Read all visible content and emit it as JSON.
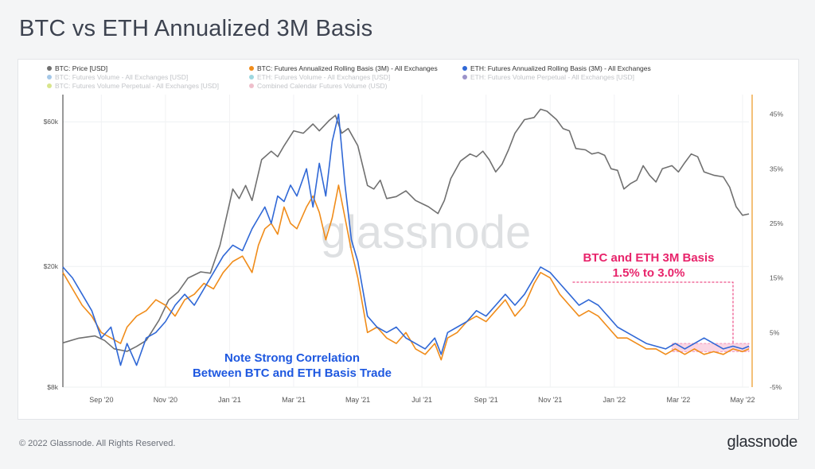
{
  "page": {
    "title": "BTC vs ETH Annualized 3M Basis",
    "copyright": "© 2022 Glassnode. All Rights Reserved.",
    "logo": "glassnode",
    "watermark": "glassnode"
  },
  "colors": {
    "btc_price": "#707070",
    "btc_basis": "#f08c1a",
    "eth_basis": "#3068d6",
    "annotation_pink": "#e8246b",
    "annotation_blue": "#1e58e0",
    "right_axis": "#f0a640"
  },
  "legend": [
    {
      "label": "BTC: Price [USD]",
      "color": "#707070",
      "faded": false
    },
    {
      "label": "BTC: Futures Annualized Rolling Basis (3M) - All Exchanges",
      "color": "#f08c1a",
      "faded": false
    },
    {
      "label": "ETH: Futures Annualized Rolling Basis (3M) - All Exchanges",
      "color": "#3068d6",
      "faded": false
    },
    {
      "label": "BTC: Futures Volume - All Exchanges [USD]",
      "color": "#5b9bd5",
      "faded": true
    },
    {
      "label": "ETH: Futures Volume - All Exchanges [USD]",
      "color": "#4fb6c4",
      "faded": true
    },
    {
      "label": "ETH: Futures Volume Perpetual - All Exchanges [USD]",
      "color": "#4b3a9c",
      "faded": true
    },
    {
      "label": "BTC: Futures Volume Perpetual - All Exchanges [USD]",
      "color": "#b8cf2e",
      "faded": true
    },
    {
      "label": "Combined Calendar Futures Volume (USD)",
      "color": "#e08aa0",
      "faded": true
    }
  ],
  "chart_data": {
    "type": "line",
    "title": "BTC vs ETH Annualized 3M Basis",
    "x_start": 0,
    "x_end": 21.4,
    "x_unit": "months since 2020-08-01",
    "x_ticks": [
      {
        "v": 1.2,
        "label": "Sep '20"
      },
      {
        "v": 3.2,
        "label": "Nov '20"
      },
      {
        "v": 5.2,
        "label": "Jan '21"
      },
      {
        "v": 7.2,
        "label": "Mar '21"
      },
      {
        "v": 9.2,
        "label": "May '21"
      },
      {
        "v": 11.2,
        "label": "Jul '21"
      },
      {
        "v": 13.2,
        "label": "Sep '21"
      },
      {
        "v": 15.2,
        "label": "Nov '21"
      },
      {
        "v": 17.2,
        "label": "Jan '22"
      },
      {
        "v": 19.2,
        "label": "Mar '22"
      },
      {
        "v": 21.2,
        "label": "May '22"
      }
    ],
    "left_axis": {
      "scale": "log",
      "min": 8000,
      "max": 72000,
      "ticks": [
        {
          "v": 8000,
          "label": "$8k"
        },
        {
          "v": 20000,
          "label": "$20k"
        },
        {
          "v": 60000,
          "label": "$60k"
        }
      ]
    },
    "right_axis": {
      "min": -5,
      "max": 48,
      "ticks": [
        {
          "v": -5,
          "label": "-5%"
        },
        {
          "v": 5,
          "label": "5%"
        },
        {
          "v": 15,
          "label": "15%"
        },
        {
          "v": 25,
          "label": "25%"
        },
        {
          "v": 35,
          "label": "35%"
        },
        {
          "v": 45,
          "label": "45%"
        }
      ]
    },
    "series": [
      {
        "name": "BTC: Price [USD]",
        "axis": "left",
        "color": "#707070",
        "points": [
          [
            0,
            11200
          ],
          [
            0.5,
            11600
          ],
          [
            1.0,
            11800
          ],
          [
            1.3,
            11400
          ],
          [
            1.6,
            10700
          ],
          [
            2.0,
            10500
          ],
          [
            2.3,
            10900
          ],
          [
            2.6,
            11400
          ],
          [
            3.0,
            13300
          ],
          [
            3.3,
            15500
          ],
          [
            3.6,
            16500
          ],
          [
            3.9,
            18300
          ],
          [
            4.3,
            19200
          ],
          [
            4.6,
            19000
          ],
          [
            4.9,
            23500
          ],
          [
            5.1,
            29000
          ],
          [
            5.3,
            36000
          ],
          [
            5.5,
            33500
          ],
          [
            5.7,
            37000
          ],
          [
            5.9,
            33000
          ],
          [
            6.2,
            45000
          ],
          [
            6.5,
            48000
          ],
          [
            6.7,
            46000
          ],
          [
            6.9,
            50000
          ],
          [
            7.2,
            56000
          ],
          [
            7.5,
            55000
          ],
          [
            7.8,
            59000
          ],
          [
            8.0,
            56000
          ],
          [
            8.3,
            60500
          ],
          [
            8.5,
            63000
          ],
          [
            8.7,
            55000
          ],
          [
            8.9,
            57000
          ],
          [
            9.2,
            50000
          ],
          [
            9.5,
            37000
          ],
          [
            9.7,
            36000
          ],
          [
            9.9,
            38500
          ],
          [
            10.1,
            33500
          ],
          [
            10.4,
            34000
          ],
          [
            10.7,
            35500
          ],
          [
            11.0,
            33000
          ],
          [
            11.4,
            31500
          ],
          [
            11.7,
            29900
          ],
          [
            11.9,
            33000
          ],
          [
            12.1,
            39000
          ],
          [
            12.4,
            44500
          ],
          [
            12.7,
            47000
          ],
          [
            12.9,
            46000
          ],
          [
            13.1,
            48000
          ],
          [
            13.3,
            45000
          ],
          [
            13.5,
            41000
          ],
          [
            13.7,
            43500
          ],
          [
            13.9,
            48500
          ],
          [
            14.1,
            55000
          ],
          [
            14.4,
            61000
          ],
          [
            14.7,
            62000
          ],
          [
            14.9,
            66000
          ],
          [
            15.1,
            65000
          ],
          [
            15.4,
            61000
          ],
          [
            15.6,
            57000
          ],
          [
            15.8,
            56000
          ],
          [
            16.0,
            49000
          ],
          [
            16.3,
            48500
          ],
          [
            16.5,
            47000
          ],
          [
            16.7,
            47500
          ],
          [
            16.9,
            46500
          ],
          [
            17.1,
            42000
          ],
          [
            17.3,
            41500
          ],
          [
            17.5,
            36000
          ],
          [
            17.7,
            37500
          ],
          [
            17.9,
            38500
          ],
          [
            18.1,
            43000
          ],
          [
            18.3,
            40000
          ],
          [
            18.5,
            38000
          ],
          [
            18.7,
            42000
          ],
          [
            19.0,
            43000
          ],
          [
            19.2,
            41000
          ],
          [
            19.4,
            44000
          ],
          [
            19.6,
            47000
          ],
          [
            19.8,
            46000
          ],
          [
            20.0,
            41000
          ],
          [
            20.3,
            40000
          ],
          [
            20.6,
            39500
          ],
          [
            20.8,
            36500
          ],
          [
            21.0,
            31500
          ],
          [
            21.2,
            29500
          ],
          [
            21.4,
            29800
          ]
        ]
      },
      {
        "name": "BTC: Futures Annualized Rolling Basis (3M) - All Exchanges",
        "axis": "right",
        "color": "#f08c1a",
        "points": [
          [
            0,
            16
          ],
          [
            0.3,
            13
          ],
          [
            0.6,
            10
          ],
          [
            0.9,
            8
          ],
          [
            1.2,
            5
          ],
          [
            1.5,
            4
          ],
          [
            1.8,
            3
          ],
          [
            2.0,
            6
          ],
          [
            2.3,
            8
          ],
          [
            2.6,
            9
          ],
          [
            2.9,
            11
          ],
          [
            3.2,
            10
          ],
          [
            3.5,
            8
          ],
          [
            3.8,
            11
          ],
          [
            4.1,
            12
          ],
          [
            4.4,
            14
          ],
          [
            4.7,
            13
          ],
          [
            5.0,
            16
          ],
          [
            5.3,
            18
          ],
          [
            5.6,
            19
          ],
          [
            5.9,
            16
          ],
          [
            6.1,
            21
          ],
          [
            6.3,
            24
          ],
          [
            6.5,
            25
          ],
          [
            6.7,
            23
          ],
          [
            6.9,
            28
          ],
          [
            7.1,
            25
          ],
          [
            7.3,
            24
          ],
          [
            7.6,
            28
          ],
          [
            7.8,
            30
          ],
          [
            8.0,
            27
          ],
          [
            8.2,
            22
          ],
          [
            8.4,
            26
          ],
          [
            8.6,
            32
          ],
          [
            8.8,
            26
          ],
          [
            9.0,
            20
          ],
          [
            9.2,
            15
          ],
          [
            9.5,
            5
          ],
          [
            9.8,
            6
          ],
          [
            10.1,
            4
          ],
          [
            10.4,
            3
          ],
          [
            10.7,
            5
          ],
          [
            11.0,
            2
          ],
          [
            11.3,
            1
          ],
          [
            11.6,
            3
          ],
          [
            11.8,
            0
          ],
          [
            12.0,
            4
          ],
          [
            12.3,
            5
          ],
          [
            12.6,
            7
          ],
          [
            12.9,
            8
          ],
          [
            13.2,
            7
          ],
          [
            13.5,
            9
          ],
          [
            13.8,
            11
          ],
          [
            14.1,
            8
          ],
          [
            14.4,
            10
          ],
          [
            14.7,
            14
          ],
          [
            14.9,
            16
          ],
          [
            15.2,
            15
          ],
          [
            15.5,
            12
          ],
          [
            15.8,
            10
          ],
          [
            16.1,
            8
          ],
          [
            16.4,
            9
          ],
          [
            16.7,
            8
          ],
          [
            17.0,
            6
          ],
          [
            17.3,
            4
          ],
          [
            17.6,
            4
          ],
          [
            17.9,
            3
          ],
          [
            18.2,
            2
          ],
          [
            18.5,
            2
          ],
          [
            18.8,
            1
          ],
          [
            19.1,
            2
          ],
          [
            19.4,
            1
          ],
          [
            19.7,
            2
          ],
          [
            20.0,
            1
          ],
          [
            20.3,
            1.5
          ],
          [
            20.6,
            1
          ],
          [
            20.9,
            2
          ],
          [
            21.2,
            1.5
          ],
          [
            21.4,
            2
          ]
        ]
      },
      {
        "name": "ETH: Futures Annualized Rolling Basis (3M) - All Exchanges",
        "axis": "right",
        "color": "#3068d6",
        "points": [
          [
            0,
            17
          ],
          [
            0.3,
            15
          ],
          [
            0.6,
            12
          ],
          [
            0.9,
            9
          ],
          [
            1.2,
            4
          ],
          [
            1.5,
            6
          ],
          [
            1.8,
            -1
          ],
          [
            2.0,
            3
          ],
          [
            2.3,
            -1
          ],
          [
            2.6,
            4
          ],
          [
            2.9,
            5
          ],
          [
            3.2,
            7
          ],
          [
            3.5,
            10
          ],
          [
            3.8,
            12
          ],
          [
            4.1,
            10
          ],
          [
            4.4,
            13
          ],
          [
            4.7,
            16
          ],
          [
            5.0,
            19
          ],
          [
            5.3,
            21
          ],
          [
            5.6,
            20
          ],
          [
            5.9,
            24
          ],
          [
            6.1,
            26
          ],
          [
            6.3,
            28
          ],
          [
            6.5,
            25
          ],
          [
            6.7,
            30
          ],
          [
            6.9,
            29
          ],
          [
            7.1,
            32
          ],
          [
            7.3,
            30
          ],
          [
            7.6,
            35
          ],
          [
            7.8,
            28
          ],
          [
            8.0,
            36
          ],
          [
            8.2,
            30
          ],
          [
            8.4,
            40
          ],
          [
            8.6,
            45
          ],
          [
            8.8,
            32
          ],
          [
            9.0,
            22
          ],
          [
            9.2,
            18
          ],
          [
            9.5,
            8
          ],
          [
            9.8,
            6
          ],
          [
            10.1,
            5
          ],
          [
            10.4,
            6
          ],
          [
            10.7,
            4
          ],
          [
            11.0,
            3
          ],
          [
            11.3,
            2
          ],
          [
            11.6,
            4
          ],
          [
            11.8,
            1
          ],
          [
            12.0,
            5
          ],
          [
            12.3,
            6
          ],
          [
            12.6,
            7
          ],
          [
            12.9,
            9
          ],
          [
            13.2,
            8
          ],
          [
            13.5,
            10
          ],
          [
            13.8,
            12
          ],
          [
            14.1,
            10
          ],
          [
            14.4,
            12
          ],
          [
            14.7,
            15
          ],
          [
            14.9,
            17
          ],
          [
            15.2,
            16
          ],
          [
            15.5,
            14
          ],
          [
            15.8,
            12
          ],
          [
            16.1,
            10
          ],
          [
            16.4,
            11
          ],
          [
            16.7,
            10
          ],
          [
            17.0,
            8
          ],
          [
            17.3,
            6
          ],
          [
            17.6,
            5
          ],
          [
            17.9,
            4
          ],
          [
            18.2,
            3
          ],
          [
            18.5,
            2.5
          ],
          [
            18.8,
            2
          ],
          [
            19.1,
            3
          ],
          [
            19.4,
            2
          ],
          [
            19.7,
            3
          ],
          [
            20.0,
            4
          ],
          [
            20.3,
            3
          ],
          [
            20.6,
            2
          ],
          [
            20.9,
            2.5
          ],
          [
            21.2,
            2
          ],
          [
            21.4,
            2.5
          ]
        ]
      }
    ],
    "annotations": [
      {
        "text": "BTC and ETH 3M Basis",
        "color": "#e8246b"
      },
      {
        "text": "1.5% to 3.0%",
        "color": "#e8246b"
      },
      {
        "text": "Note Strong Correlation",
        "color": "#1e58e0"
      },
      {
        "text": "Between BTC and ETH Basis Trade",
        "color": "#1e58e0"
      }
    ],
    "highlight_band": {
      "x_from": 19.0,
      "x_to": 21.4,
      "y_from": 1.5,
      "y_to": 3.0,
      "axis": "right"
    }
  }
}
